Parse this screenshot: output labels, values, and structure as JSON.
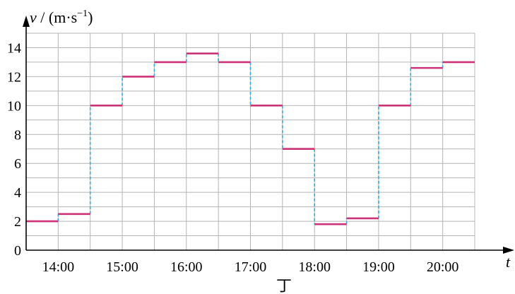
{
  "chart_data": {
    "type": "line",
    "subtype": "step",
    "y_axis_label": {
      "var": "v",
      "sep": " / ",
      "open": "(m·s",
      "exp": "−1",
      "close": ")"
    },
    "x_axis_label": "t",
    "caption": "丁",
    "x_tick_labels": [
      "14:00",
      "15:00",
      "16:00",
      "17:00",
      "18:00",
      "19:00",
      "20:00"
    ],
    "y_tick_labels": [
      "0",
      "2",
      "4",
      "6",
      "8",
      "10",
      "12",
      "14"
    ],
    "ylim": [
      0,
      15
    ],
    "y_grid_step": 1,
    "x_range": [
      "13:30",
      "20:30"
    ],
    "grid": true,
    "colors": {
      "step": "#cc3377",
      "connector": "#29aee0",
      "grid": "#b4b4b4",
      "axis": "#000000"
    },
    "steps": [
      {
        "start": "13:30",
        "end": "14:00",
        "v": 2.0
      },
      {
        "start": "14:00",
        "end": "14:30",
        "v": 2.5
      },
      {
        "start": "14:30",
        "end": "15:00",
        "v": 10.0
      },
      {
        "start": "15:00",
        "end": "15:30",
        "v": 12.0
      },
      {
        "start": "15:30",
        "end": "16:00",
        "v": 13.0
      },
      {
        "start": "16:00",
        "end": "16:30",
        "v": 13.6
      },
      {
        "start": "16:30",
        "end": "17:00",
        "v": 13.0
      },
      {
        "start": "17:00",
        "end": "17:30",
        "v": 10.0
      },
      {
        "start": "17:30",
        "end": "18:00",
        "v": 7.0
      },
      {
        "start": "18:00",
        "end": "18:30",
        "v": 1.8
      },
      {
        "start": "18:30",
        "end": "19:00",
        "v": 2.2
      },
      {
        "start": "19:00",
        "end": "19:30",
        "v": 10.0
      },
      {
        "start": "19:30",
        "end": "20:00",
        "v": 12.6
      },
      {
        "start": "20:00",
        "end": "20:30",
        "v": 13.0
      }
    ]
  }
}
